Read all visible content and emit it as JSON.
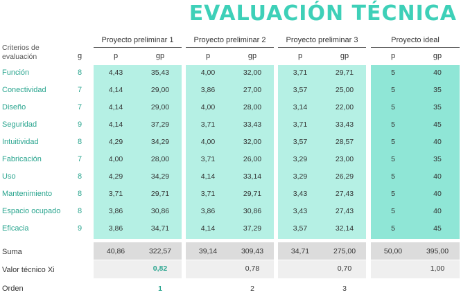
{
  "title": "EVALUACIÓN TÉCNICA",
  "criteria_header": "Criterios de evaluación",
  "g_header": "g",
  "projects": [
    {
      "name": "Proyecto preliminar 1",
      "p_header": "p",
      "gp_header": "gp",
      "p": [
        "4,43",
        "4,14",
        "4,14",
        "4,14",
        "4,29",
        "4,00",
        "4,29",
        "3,71",
        "3,86",
        "3,86"
      ],
      "gp": [
        "35,43",
        "29,00",
        "29,00",
        "37,29",
        "34,29",
        "28,00",
        "34,29",
        "29,71",
        "30,86",
        "34,71"
      ],
      "sum_p": "40,86",
      "sum_gp": "322,57",
      "valor": "0,82",
      "orden": "1",
      "panel_color": "#b5f0e4"
    },
    {
      "name": "Proyecto preliminar 2",
      "p_header": "p",
      "gp_header": "gp",
      "p": [
        "4,00",
        "3,86",
        "4,00",
        "3,71",
        "4,00",
        "3,71",
        "4,14",
        "3,71",
        "3,86",
        "4,14"
      ],
      "gp": [
        "32,00",
        "27,00",
        "28,00",
        "33,43",
        "32,00",
        "26,00",
        "33,14",
        "29,71",
        "30,86",
        "37,29"
      ],
      "sum_p": "39,14",
      "sum_gp": "309,43",
      "valor": "0,78",
      "orden": "2",
      "panel_color": "#b5f0e4"
    },
    {
      "name": "Proyecto preliminar 3",
      "p_header": "p",
      "gp_header": "gp",
      "p": [
        "3,71",
        "3,57",
        "3,14",
        "3,71",
        "3,57",
        "3,29",
        "3,29",
        "3,43",
        "3,43",
        "3,57"
      ],
      "gp": [
        "29,71",
        "25,00",
        "22,00",
        "33,43",
        "28,57",
        "23,00",
        "26,29",
        "27,43",
        "27,43",
        "32,14"
      ],
      "sum_p": "34,71",
      "sum_gp": "275,00",
      "valor": "0,70",
      "orden": "3",
      "panel_color": "#b5f0e4"
    },
    {
      "name": "Proyecto ideal",
      "p_header": "p",
      "gp_header": "gp",
      "p": [
        "5",
        "5",
        "5",
        "5",
        "5",
        "5",
        "5",
        "5",
        "5",
        "5"
      ],
      "gp": [
        "40",
        "35",
        "35",
        "45",
        "40",
        "35",
        "40",
        "40",
        "40",
        "45"
      ],
      "sum_p": "50,00",
      "sum_gp": "395,00",
      "valor": "1,00",
      "orden": "",
      "panel_color": "#8fe6d6"
    }
  ],
  "criteria": [
    {
      "name": "Función",
      "g": "8"
    },
    {
      "name": "Conectividad",
      "g": "7"
    },
    {
      "name": "Diseño",
      "g": "7"
    },
    {
      "name": "Seguridad",
      "g": "9"
    },
    {
      "name": "Intuitividad",
      "g": "8"
    },
    {
      "name": "Fabricación",
      "g": "7"
    },
    {
      "name": "Uso",
      "g": "8"
    },
    {
      "name": "Mantenimiento",
      "g": "8"
    },
    {
      "name": "Espacio ocupado",
      "g": "8"
    },
    {
      "name": "Eficacia",
      "g": "9"
    }
  ],
  "summary_labels": {
    "suma": "Suma",
    "valor": "Valor técnico Xi",
    "orden": "Orden"
  }
}
